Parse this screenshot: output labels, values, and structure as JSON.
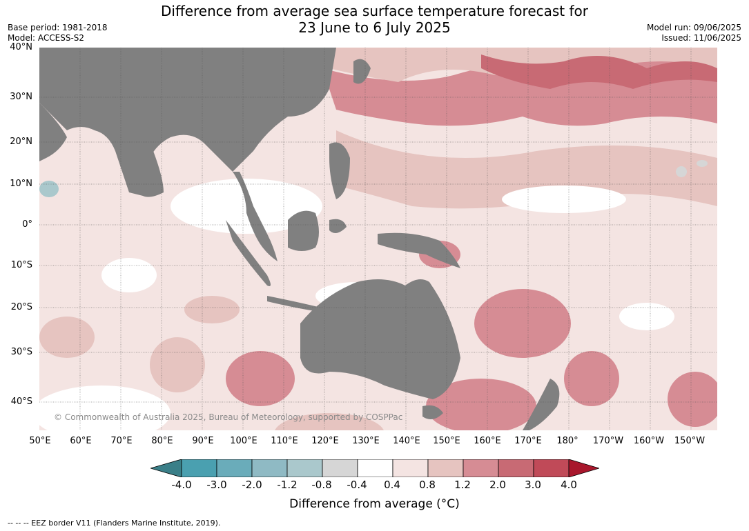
{
  "title": {
    "line1": "Difference from average sea surface temperature forecast for",
    "line2": "23 June to 6 July 2025"
  },
  "meta_left": {
    "base_period": "Base period: 1981-2018",
    "model": "Model: ACCESS-S2"
  },
  "meta_right": {
    "model_run": "Model run: 09/06/2025",
    "issued": "Issued: 11/06/2025"
  },
  "lat_labels": [
    "40°N",
    "30°N",
    "20°N",
    "10°N",
    "0°",
    "10°S",
    "20°S",
    "30°S",
    "40°S"
  ],
  "lon_labels": [
    "50°E",
    "60°E",
    "70°E",
    "80°E",
    "90°E",
    "100°E",
    "110°E",
    "120°E",
    "130°E",
    "140°E",
    "150°E",
    "160°E",
    "170°E",
    "180°",
    "170°W",
    "160°W",
    "150°W"
  ],
  "copyright": "© Commonwealth of Australia 2025, Bureau of Meteorology, supported by COSPPac",
  "colorbar": {
    "title": "Difference from average (°C)",
    "ticks": [
      "-4.0",
      "-3.0",
      "-2.0",
      "-1.2",
      "-0.8",
      "-0.4",
      "0.4",
      "0.8",
      "1.2",
      "2.0",
      "3.0",
      "4.0"
    ],
    "low_extend_color": "#3a7f88",
    "high_extend_color": "#a8172c",
    "bin_colors": [
      "#4aa0b0",
      "#6aacba",
      "#8fbac4",
      "#aac8cc",
      "#d6d6d6",
      "#ffffff",
      "#f4e4e2",
      "#e6c4c0",
      "#d68c94",
      "#c86a74",
      "#c04a58"
    ]
  },
  "colors": {
    "land": "#808080",
    "ocean_base": "#f4e4e2"
  },
  "footnote": "--  --  -- EEZ border V11 (Flanders Marine Institute, 2019)."
}
